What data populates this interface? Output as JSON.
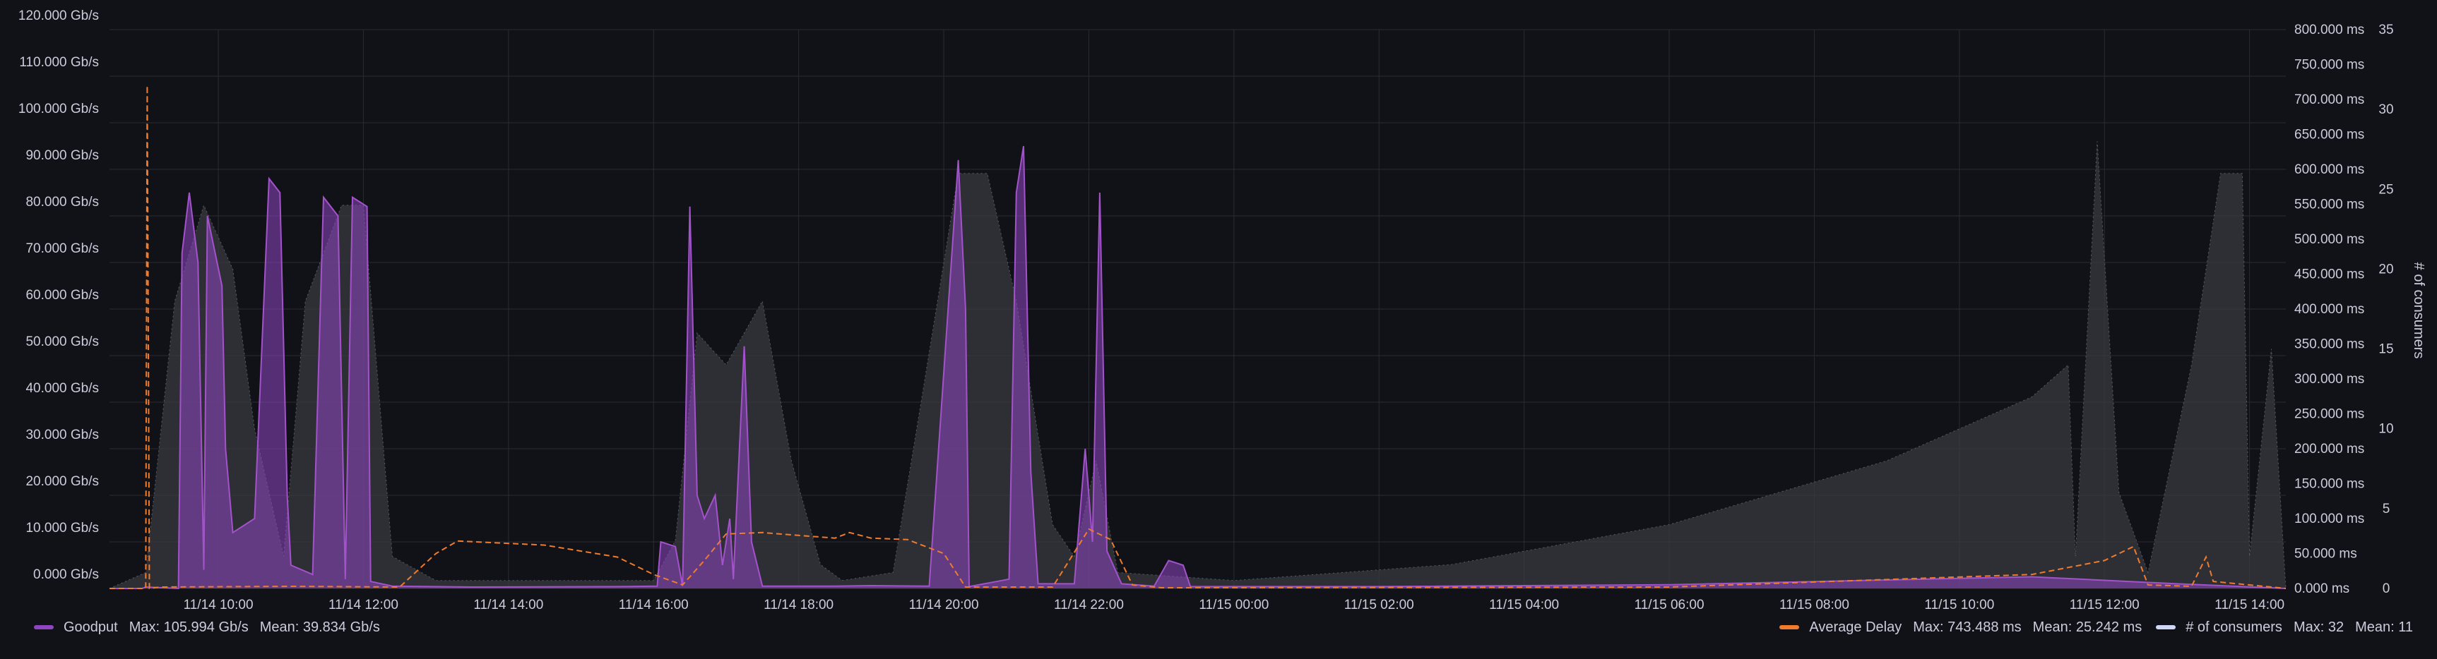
{
  "colors": {
    "background": "#111217",
    "grid": "#2a2b31",
    "text": "#ccccdc",
    "goodput": "#8f45c2",
    "goodput_line": "#a352cc",
    "delay": "#f07b2c",
    "consumers_fill": "#3a3c42",
    "consumers_line": "#cfd8f6"
  },
  "chart_data": {
    "type": "line",
    "x_ticks": [
      "11/14 10:00",
      "11/14 12:00",
      "11/14 14:00",
      "11/14 16:00",
      "11/14 18:00",
      "11/14 20:00",
      "11/14 22:00",
      "11/15 00:00",
      "11/15 02:00",
      "11/15 04:00",
      "11/15 06:00",
      "11/15 08:00",
      "11/15 10:00",
      "11/15 12:00",
      "11/15 14:00"
    ],
    "x_range_hours": [
      8.5,
      38.5
    ],
    "y_left": {
      "ticks": [
        "0.000 Gb/s",
        "10.000 Gb/s",
        "20.000 Gb/s",
        "30.000 Gb/s",
        "40.000 Gb/s",
        "50.000 Gb/s",
        "60.000 Gb/s",
        "70.000 Gb/s",
        "80.000 Gb/s",
        "90.000 Gb/s",
        "100.000 Gb/s",
        "110.000 Gb/s",
        "120.000 Gb/s"
      ],
      "range": [
        0,
        120
      ]
    },
    "y_right_delay": {
      "ticks": [
        "0.000 ms",
        "50.000 ms",
        "100.000 ms",
        "150.000 ms",
        "200.000 ms",
        "250.000 ms",
        "300.000 ms",
        "350.000 ms",
        "400.000 ms",
        "450.000 ms",
        "500.000 ms",
        "550.000 ms",
        "600.000 ms",
        "650.000 ms",
        "700.000 ms",
        "750.000 ms",
        "800.000 ms"
      ],
      "range": [
        0,
        800
      ]
    },
    "y_right_consumers": {
      "ticks": [
        "0",
        "5",
        "10",
        "15",
        "20",
        "25",
        "30",
        "35"
      ],
      "range": [
        0,
        35
      ],
      "label": "# of consumers"
    },
    "series": [
      {
        "name": "Goodput",
        "axis": "left",
        "points": [
          [
            8.5,
            0
          ],
          [
            8.95,
            0
          ],
          [
            9.0,
            0.3
          ],
          [
            9.45,
            0
          ],
          [
            9.5,
            72
          ],
          [
            9.6,
            85
          ],
          [
            9.72,
            70
          ],
          [
            9.8,
            4
          ],
          [
            9.85,
            80
          ],
          [
            10.05,
            65
          ],
          [
            10.1,
            30
          ],
          [
            10.2,
            12
          ],
          [
            10.5,
            15
          ],
          [
            10.7,
            88
          ],
          [
            10.85,
            85
          ],
          [
            10.95,
            20
          ],
          [
            11.0,
            5
          ],
          [
            11.3,
            3
          ],
          [
            11.45,
            84
          ],
          [
            11.65,
            80
          ],
          [
            11.75,
            2
          ],
          [
            11.85,
            84
          ],
          [
            12.05,
            82
          ],
          [
            12.1,
            1.5
          ],
          [
            12.4,
            0.5
          ],
          [
            13.5,
            0.3
          ],
          [
            15.5,
            0.4
          ],
          [
            16.05,
            0.5
          ],
          [
            16.1,
            10
          ],
          [
            16.3,
            9
          ],
          [
            16.4,
            0.5
          ],
          [
            16.5,
            82
          ],
          [
            16.6,
            20
          ],
          [
            16.7,
            15
          ],
          [
            16.85,
            20
          ],
          [
            16.95,
            5
          ],
          [
            17.05,
            15
          ],
          [
            17.1,
            2
          ],
          [
            17.25,
            52
          ],
          [
            17.35,
            10
          ],
          [
            17.5,
            0.5
          ],
          [
            18.5,
            0.5
          ],
          [
            19.0,
            0.6
          ],
          [
            19.8,
            0.5
          ],
          [
            20.2,
            92
          ],
          [
            20.3,
            60
          ],
          [
            20.35,
            0.4
          ],
          [
            20.9,
            2
          ],
          [
            21.0,
            85
          ],
          [
            21.1,
            95
          ],
          [
            21.2,
            25
          ],
          [
            21.3,
            1
          ],
          [
            21.8,
            1
          ],
          [
            21.95,
            30
          ],
          [
            22.05,
            10
          ],
          [
            22.15,
            85
          ],
          [
            22.25,
            8
          ],
          [
            22.45,
            1
          ],
          [
            22.9,
            0.5
          ],
          [
            23.1,
            6
          ],
          [
            23.3,
            5
          ],
          [
            23.4,
            0.4
          ],
          [
            26.0,
            0.4
          ],
          [
            30.0,
            0.8
          ],
          [
            35.0,
            2.5
          ],
          [
            37.0,
            1
          ],
          [
            38.5,
            0
          ]
        ],
        "max": "105.994 Gb/s",
        "mean": "39.834 Gb/s"
      },
      {
        "name": "Average Delay",
        "axis": "right",
        "points": [
          [
            8.5,
            0
          ],
          [
            9.0,
            0
          ],
          [
            9.02,
            720
          ],
          [
            9.05,
            0
          ],
          [
            9.2,
            2
          ],
          [
            11.0,
            3
          ],
          [
            12.5,
            2
          ],
          [
            13.0,
            50
          ],
          [
            13.3,
            68
          ],
          [
            14.5,
            62
          ],
          [
            15.5,
            45
          ],
          [
            16.0,
            20
          ],
          [
            16.4,
            5
          ],
          [
            16.7,
            40
          ],
          [
            17.0,
            78
          ],
          [
            17.5,
            80
          ],
          [
            18.0,
            76
          ],
          [
            18.5,
            72
          ],
          [
            18.7,
            80
          ],
          [
            19.0,
            72
          ],
          [
            19.5,
            70
          ],
          [
            20.0,
            50
          ],
          [
            20.3,
            2
          ],
          [
            21.5,
            2
          ],
          [
            22.0,
            85
          ],
          [
            22.3,
            70
          ],
          [
            22.6,
            5
          ],
          [
            23.0,
            1
          ],
          [
            30.0,
            2
          ],
          [
            35.0,
            20
          ],
          [
            36.0,
            40
          ],
          [
            36.4,
            60
          ],
          [
            36.6,
            5
          ],
          [
            37.2,
            3
          ],
          [
            37.4,
            45
          ],
          [
            37.5,
            10
          ],
          [
            38.5,
            0
          ]
        ],
        "max": "743.488 ms",
        "mean": "25.242 ms"
      },
      {
        "name": "# of consumers",
        "axis": "right2",
        "points": [
          [
            8.5,
            0
          ],
          [
            9.0,
            1
          ],
          [
            9.4,
            18
          ],
          [
            9.8,
            24
          ],
          [
            10.2,
            20
          ],
          [
            10.5,
            10
          ],
          [
            10.9,
            2
          ],
          [
            11.2,
            18
          ],
          [
            11.7,
            24
          ],
          [
            12.0,
            24
          ],
          [
            12.4,
            2
          ],
          [
            13.0,
            0.5
          ],
          [
            16.0,
            0.5
          ],
          [
            16.3,
            3
          ],
          [
            16.6,
            16
          ],
          [
            17.0,
            14
          ],
          [
            17.5,
            18
          ],
          [
            17.9,
            8
          ],
          [
            18.3,
            1.5
          ],
          [
            18.6,
            0.5
          ],
          [
            19.3,
            1
          ],
          [
            19.7,
            12
          ],
          [
            20.2,
            26
          ],
          [
            20.6,
            26
          ],
          [
            21.0,
            18
          ],
          [
            21.5,
            4
          ],
          [
            21.8,
            2
          ],
          [
            22.1,
            8
          ],
          [
            22.4,
            1
          ],
          [
            24.0,
            0.5
          ],
          [
            27.0,
            1.5
          ],
          [
            30.0,
            4
          ],
          [
            33.0,
            8
          ],
          [
            35.0,
            12
          ],
          [
            35.5,
            14
          ],
          [
            35.6,
            2
          ],
          [
            35.9,
            28
          ],
          [
            36.2,
            6
          ],
          [
            36.6,
            1
          ],
          [
            37.2,
            14
          ],
          [
            37.6,
            26
          ],
          [
            37.9,
            26
          ],
          [
            38.0,
            2
          ],
          [
            38.3,
            15
          ],
          [
            38.5,
            0
          ]
        ],
        "max": "32",
        "mean": "11"
      }
    ]
  },
  "legend": {
    "goodput": {
      "name": "Goodput",
      "max": "Max: 105.994 Gb/s",
      "mean": "Mean: 39.834 Gb/s"
    },
    "delay": {
      "name": "Average Delay",
      "max": "Max: 743.488 ms",
      "mean": "Mean: 25.242 ms"
    },
    "consumers": {
      "name": "# of consumers",
      "max": "Max: 32",
      "mean": "Mean: 11"
    }
  }
}
